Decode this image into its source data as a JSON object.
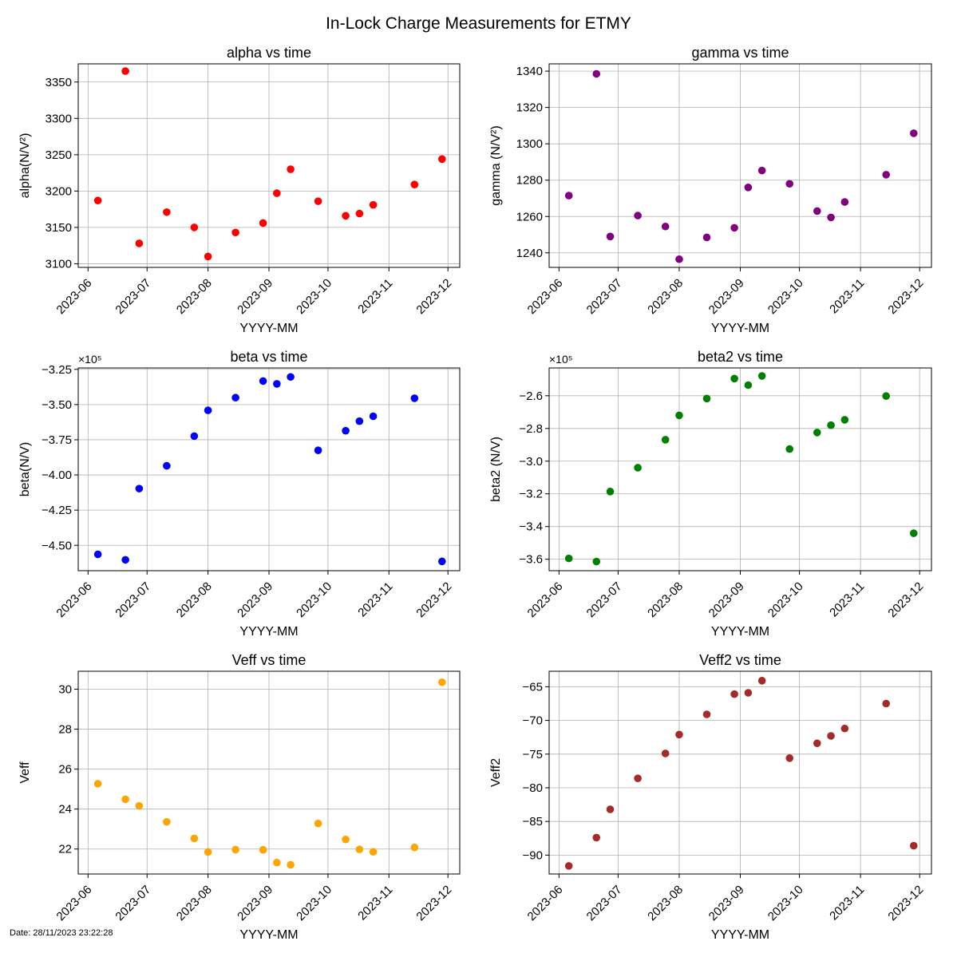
{
  "figure": {
    "title": "In-Lock Charge Measurements for ETMY",
    "footer_date": "Date: 28/11/2023 23:22:28"
  },
  "shared": {
    "x_label": "YYYY-MM",
    "x_ticks": [
      "2023-06",
      "2023-07",
      "2023-08",
      "2023-09",
      "2023-10",
      "2023-11",
      "2023-12"
    ],
    "x_dates": [
      "2023-06-06",
      "2023-06-20",
      "2023-06-27",
      "2023-07-11",
      "2023-07-25",
      "2023-08-01",
      "2023-08-15",
      "2023-08-29",
      "2023-09-05",
      "2023-09-12",
      "2023-09-26",
      "2023-10-10",
      "2023-10-17",
      "2023-10-24",
      "2023-11-14",
      "2023-11-28"
    ]
  },
  "chart_data": [
    {
      "type": "scatter",
      "title": "alpha vs time",
      "xlabel": "YYYY-MM",
      "ylabel": "alpha(N/V²)",
      "color": "#ff0000",
      "ylim": [
        3095,
        3375
      ],
      "yticks": [
        3100,
        3150,
        3200,
        3250,
        3300,
        3350
      ],
      "ytick_labels": [
        "3100",
        "3150",
        "3200",
        "3250",
        "3300",
        "3350"
      ],
      "multiplier": "",
      "grid": true,
      "y": [
        3187,
        3365,
        3128,
        3171,
        3150,
        3110,
        3143,
        3156,
        3197,
        3230,
        3186,
        3166,
        3169,
        3181,
        3209,
        3244
      ]
    },
    {
      "type": "scatter",
      "title": "gamma vs time",
      "xlabel": "YYYY-MM",
      "ylabel": "gamma (N/V²)",
      "color": "#800080",
      "ylim": [
        1232,
        1344
      ],
      "yticks": [
        1240,
        1260,
        1280,
        1300,
        1320,
        1340
      ],
      "ytick_labels": [
        "1240",
        "1260",
        "1280",
        "1300",
        "1320",
        "1340"
      ],
      "multiplier": "",
      "grid": true,
      "y": [
        1271.5,
        1338.5,
        1249,
        1260.5,
        1254.5,
        1236.5,
        1248.5,
        1253.8,
        1276,
        1285.3,
        1278,
        1263,
        1259.5,
        1268,
        1283,
        1305.8
      ]
    },
    {
      "type": "scatter",
      "title": "beta vs time",
      "xlabel": "YYYY-MM",
      "ylabel": "beta(N/V)",
      "color": "#0000ff",
      "ylim": [
        -4.68,
        -3.24
      ],
      "yticks": [
        -4.5,
        -4.25,
        -4.0,
        -3.75,
        -3.5,
        -3.25
      ],
      "ytick_labels": [
        "−4.50",
        "−4.25",
        "−4.00",
        "−3.75",
        "−3.50",
        "−3.25"
      ],
      "multiplier": "×10⁵",
      "grid": true,
      "y": [
        -4.564,
        -4.603,
        -4.097,
        -3.935,
        -3.724,
        -3.541,
        -3.451,
        -3.333,
        -3.353,
        -3.304,
        -3.825,
        -3.686,
        -3.618,
        -3.583,
        -3.455,
        -4.614
      ]
    },
    {
      "type": "scatter",
      "title": "beta2 vs time",
      "xlabel": "YYYY-MM",
      "ylabel": "beta2 (N/V)",
      "color": "#008000",
      "ylim": [
        -3.67,
        -2.43
      ],
      "yticks": [
        -3.6,
        -3.4,
        -3.2,
        -3.0,
        -2.8,
        -2.6
      ],
      "ytick_labels": [
        "−3.6",
        "−3.4",
        "−3.2",
        "−3.0",
        "−2.8",
        "−2.6"
      ],
      "multiplier": "×10⁵",
      "grid": true,
      "y": [
        -3.595,
        -3.614,
        -3.186,
        -3.04,
        -2.869,
        -2.72,
        -2.617,
        -2.495,
        -2.535,
        -2.479,
        -2.926,
        -2.825,
        -2.78,
        -2.747,
        -2.602,
        -3.441
      ]
    },
    {
      "type": "scatter",
      "title": "Veff vs time",
      "xlabel": "YYYY-MM",
      "ylabel": "Veff",
      "color": "#ffa500",
      "ylim": [
        20.75,
        30.9
      ],
      "yticks": [
        22,
        24,
        26,
        28,
        30
      ],
      "ytick_labels": [
        "22",
        "24",
        "26",
        "28",
        "30"
      ],
      "multiplier": "",
      "grid": true,
      "y": [
        25.27,
        24.49,
        24.16,
        23.36,
        22.53,
        21.85,
        21.97,
        21.96,
        21.32,
        21.21,
        23.28,
        22.48,
        21.98,
        21.86,
        22.08,
        30.35
      ]
    },
    {
      "type": "scatter",
      "title": "Veff2 vs time",
      "xlabel": "YYYY-MM",
      "ylabel": "Veff2",
      "color": "#a52a2a",
      "ylim": [
        -92.8,
        -62.7
      ],
      "yticks": [
        -90,
        -85,
        -80,
        -75,
        -70,
        -65
      ],
      "ytick_labels": [
        "−90",
        "−85",
        "−80",
        "−75",
        "−70",
        "−65"
      ],
      "multiplier": "",
      "grid": true,
      "y": [
        -91.6,
        -87.4,
        -83.2,
        -78.6,
        -74.9,
        -72.1,
        -69.1,
        -66.1,
        -65.9,
        -64.1,
        -75.6,
        -73.4,
        -72.3,
        -71.2,
        -67.5,
        -88.6
      ]
    }
  ]
}
